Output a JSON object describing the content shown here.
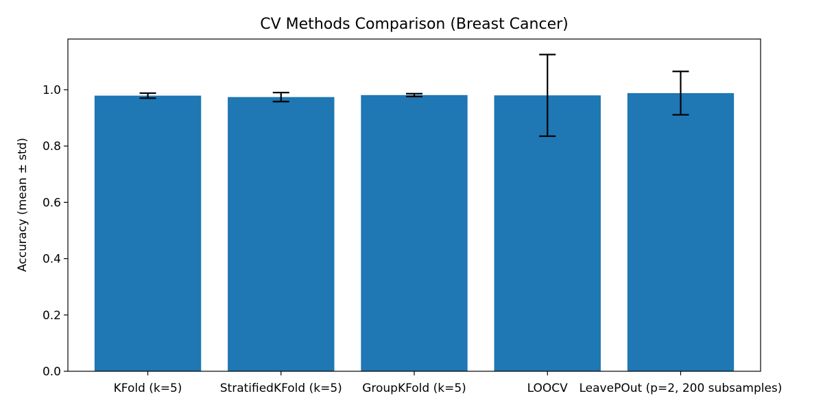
{
  "chart_data": {
    "type": "bar",
    "title": "CV Methods Comparison (Breast Cancer)",
    "xlabel": "",
    "ylabel": "Accuracy (mean ± std)",
    "categories": [
      "KFold (k=5)",
      "StratifiedKFold (k=5)",
      "GroupKFold (k=5)",
      "LOOCV",
      "LeavePOut (p=2, 200 subsamples)"
    ],
    "values": [
      0.979,
      0.974,
      0.981,
      0.98,
      0.988
    ],
    "errors": [
      0.009,
      0.016,
      0.005,
      0.145,
      0.077
    ],
    "ylim": [
      0,
      1.18
    ],
    "yticks": [
      0.0,
      0.2,
      0.4,
      0.6,
      0.8,
      1.0
    ],
    "ytick_labels": [
      "0.0",
      "0.2",
      "0.4",
      "0.6",
      "0.8",
      "1.0"
    ],
    "bar_color": "#1f77b4",
    "grid": false,
    "legend": "none"
  }
}
